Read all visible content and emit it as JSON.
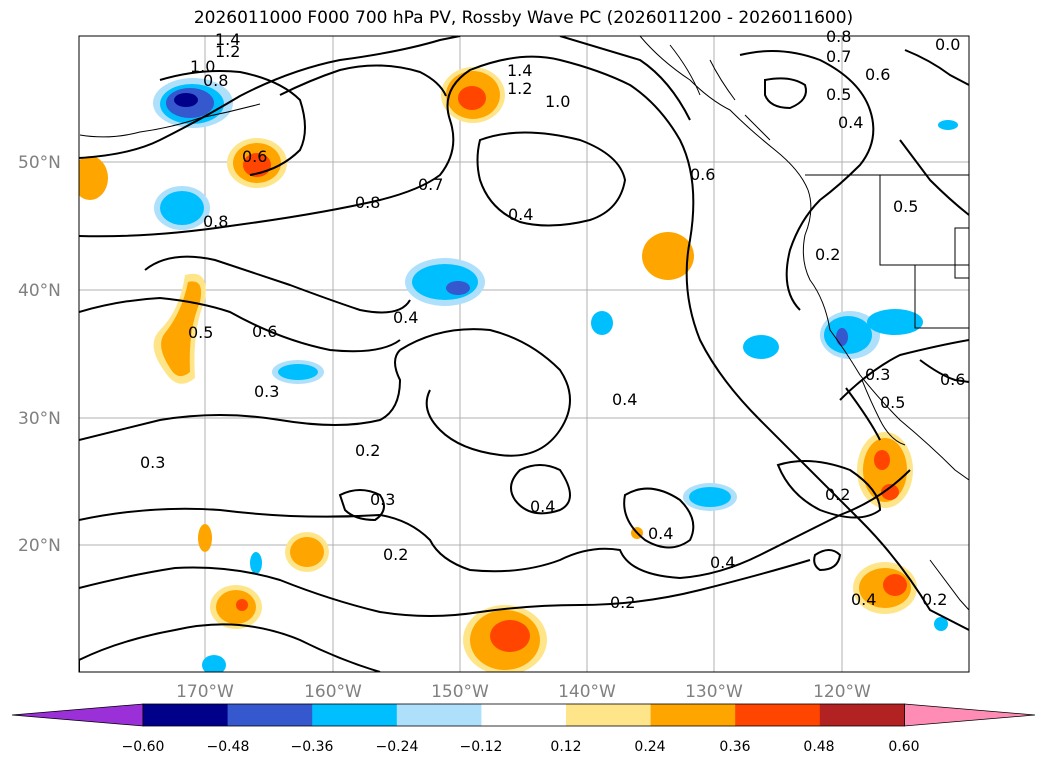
{
  "title": "2026011000 F000 700 hPa PV, Rossby Wave PC (2026011200 - 2026011600)",
  "map": {
    "lat_labels": [
      "50°N",
      "40°N",
      "30°N",
      "20°N"
    ],
    "lon_labels": [
      "170°W",
      "160°W",
      "150°W",
      "140°W",
      "130°W",
      "120°W"
    ],
    "gridlines": true
  },
  "contour_labels": [
    {
      "text": "1.4"
    },
    {
      "text": "1.2"
    },
    {
      "text": "1.0"
    },
    {
      "text": "0.8"
    },
    {
      "text": "0.6"
    },
    {
      "text": "1.4"
    },
    {
      "text": "1.2"
    },
    {
      "text": "1.0"
    },
    {
      "text": "0.8"
    },
    {
      "text": "0.7"
    },
    {
      "text": "0.6"
    },
    {
      "text": "0.5"
    },
    {
      "text": "0.4"
    },
    {
      "text": "0.6"
    },
    {
      "text": "0.7"
    },
    {
      "text": "0.8"
    },
    {
      "text": "0.8"
    },
    {
      "text": "0.4"
    },
    {
      "text": "0.2"
    },
    {
      "text": "0.5"
    },
    {
      "text": "0.6"
    },
    {
      "text": "0.4"
    },
    {
      "text": "0.3"
    },
    {
      "text": "0.3"
    },
    {
      "text": "0.3"
    },
    {
      "text": "0.6"
    },
    {
      "text": "0.5"
    },
    {
      "text": "0.4"
    },
    {
      "text": "0.2"
    },
    {
      "text": "0.3"
    },
    {
      "text": "0.2"
    },
    {
      "text": "0.4"
    },
    {
      "text": "0.4"
    },
    {
      "text": "0.4"
    },
    {
      "text": "0.2"
    },
    {
      "text": "0.2"
    },
    {
      "text": "0.4"
    },
    {
      "text": "0.2"
    },
    {
      "text": "0.0"
    },
    {
      "text": "0.5"
    }
  ],
  "colorbar": {
    "colors": [
      "#9b30d9",
      "#00008b",
      "#3558cf",
      "#00bfff",
      "#aee0fb",
      "#ffffff",
      "#ffe58a",
      "#ffa500",
      "#ff4500",
      "#b22222",
      "#ff8cb4"
    ],
    "labels": [
      "−0.60",
      "−0.48",
      "−0.36",
      "−0.24",
      "−0.12",
      "0.12",
      "0.24",
      "0.36",
      "0.48",
      "0.60"
    ]
  }
}
